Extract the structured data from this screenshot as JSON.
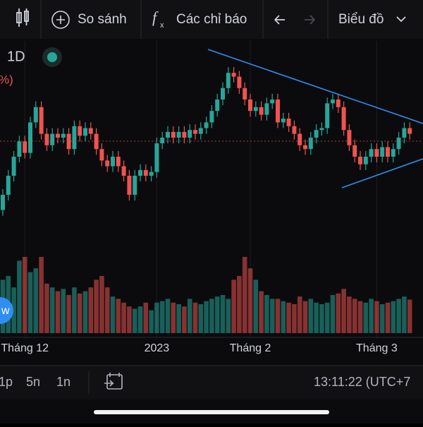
{
  "toolbar": {
    "compare": "So sánh",
    "indicators": "Các chỉ báo",
    "chart_type": "Biểu đồ"
  },
  "interval": "1D",
  "percent_fragment": "%)",
  "button_fragment": "w",
  "bottom_bar": {
    "ranges": [
      "1p",
      "5n",
      "1n"
    ],
    "clock": "13:11:22 (UTC+7"
  },
  "chart_data": {
    "type": "candlestick",
    "up_color": "#26a69a",
    "down_color": "#ef5350",
    "ylim": [
      0,
      100
    ],
    "vlim": [
      0,
      100
    ],
    "xticks": [
      {
        "value": 4,
        "label": "Tháng 12"
      },
      {
        "value": 28,
        "label": "2023"
      },
      {
        "value": 45,
        "label": "Tháng 2"
      },
      {
        "value": 68,
        "label": "Tháng 3"
      }
    ],
    "open": [
      12,
      20,
      30,
      40,
      48,
      42,
      58,
      66,
      52,
      46,
      52,
      50,
      52,
      44,
      56,
      51,
      55,
      52,
      44,
      38,
      35,
      40,
      35,
      30,
      20,
      30,
      33,
      30,
      32,
      47,
      50,
      53,
      50,
      53,
      50,
      54,
      52,
      55,
      58,
      64,
      70,
      76,
      84,
      82,
      76,
      70,
      64,
      66,
      62,
      68,
      70,
      58,
      60,
      56,
      52,
      46,
      44,
      50,
      54,
      55,
      68,
      70,
      66,
      54,
      46,
      40,
      36,
      40,
      44,
      40,
      45,
      40,
      44,
      50,
      55
    ],
    "close": [
      20,
      30,
      40,
      48,
      42,
      58,
      66,
      52,
      46,
      52,
      50,
      52,
      44,
      56,
      51,
      55,
      52,
      44,
      38,
      35,
      40,
      35,
      30,
      20,
      30,
      33,
      30,
      32,
      47,
      50,
      53,
      50,
      53,
      50,
      54,
      52,
      55,
      58,
      64,
      70,
      76,
      84,
      82,
      76,
      70,
      64,
      66,
      62,
      68,
      70,
      58,
      60,
      56,
      52,
      46,
      44,
      50,
      54,
      55,
      68,
      70,
      66,
      54,
      46,
      40,
      36,
      40,
      44,
      40,
      45,
      40,
      44,
      50,
      55,
      52
    ],
    "high": [
      23,
      33,
      43,
      51,
      51,
      61,
      69,
      69,
      55,
      55,
      55,
      55,
      55,
      59,
      59,
      58,
      58,
      55,
      47,
      41,
      43,
      43,
      38,
      33,
      33,
      36,
      36,
      35,
      50,
      53,
      56,
      56,
      56,
      56,
      57,
      57,
      58,
      61,
      67,
      73,
      79,
      87,
      87,
      85,
      79,
      73,
      69,
      69,
      71,
      73,
      73,
      63,
      63,
      59,
      55,
      49,
      53,
      57,
      58,
      71,
      73,
      73,
      69,
      57,
      49,
      43,
      43,
      47,
      47,
      48,
      48,
      47,
      53,
      58,
      58
    ],
    "low": [
      9,
      17,
      27,
      37,
      39,
      39,
      55,
      49,
      43,
      43,
      47,
      47,
      41,
      41,
      48,
      48,
      49,
      41,
      35,
      32,
      32,
      32,
      27,
      17,
      17,
      27,
      27,
      27,
      29,
      44,
      47,
      47,
      47,
      47,
      47,
      49,
      49,
      52,
      55,
      61,
      67,
      73,
      79,
      73,
      67,
      61,
      61,
      59,
      59,
      65,
      55,
      55,
      53,
      49,
      43,
      41,
      41,
      47,
      51,
      52,
      65,
      63,
      51,
      43,
      37,
      33,
      33,
      37,
      37,
      37,
      37,
      37,
      41,
      47,
      49
    ],
    "volume": [
      70,
      75,
      60,
      95,
      100,
      80,
      85,
      100,
      65,
      60,
      55,
      58,
      50,
      60,
      52,
      55,
      60,
      70,
      75,
      60,
      48,
      45,
      40,
      35,
      32,
      35,
      40,
      30,
      40,
      42,
      45,
      40,
      38,
      35,
      45,
      40,
      38,
      42,
      45,
      48,
      50,
      45,
      70,
      75,
      100,
      85,
      70,
      55,
      50,
      45,
      45,
      42,
      40,
      38,
      48,
      42,
      45,
      40,
      38,
      40,
      50,
      52,
      58,
      48,
      45,
      42,
      40,
      45,
      42,
      38,
      40,
      42,
      45,
      48,
      44
    ]
  }
}
